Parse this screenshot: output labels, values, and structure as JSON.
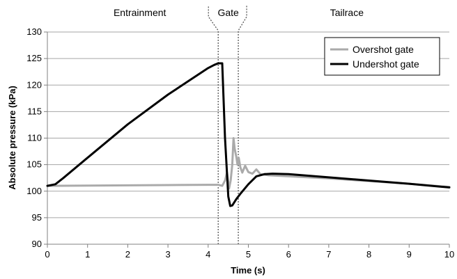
{
  "chart_data": {
    "type": "line",
    "title": "",
    "xlabel": "Time (s)",
    "ylabel": "Absolute pressure (kPa)",
    "xlim": [
      0,
      10
    ],
    "ylim": [
      90,
      130
    ],
    "xticks": [
      0,
      1,
      2,
      3,
      4,
      5,
      6,
      7,
      8,
      9,
      10
    ],
    "yticks": [
      90,
      95,
      100,
      105,
      110,
      115,
      120,
      125,
      130
    ],
    "grid": "horizontal",
    "legend_position": "top-right",
    "regions": [
      {
        "label": "Entrainment",
        "x_center": 2.3
      },
      {
        "label": "Gate",
        "x_center": 4.5
      },
      {
        "label": "Tailrace",
        "x_center": 7.45
      }
    ],
    "boundaries": [
      4.25,
      4.75
    ],
    "series": [
      {
        "name": "Overshot gate",
        "color": "#aaaaaa",
        "points": [
          [
            0,
            101.0
          ],
          [
            1,
            101.05
          ],
          [
            2,
            101.1
          ],
          [
            3,
            101.15
          ],
          [
            4,
            101.2
          ],
          [
            4.25,
            101.2
          ],
          [
            4.35,
            101.0
          ],
          [
            4.42,
            102.0
          ],
          [
            4.47,
            103.5
          ],
          [
            4.52,
            100.5
          ],
          [
            4.56,
            102.0
          ],
          [
            4.6,
            105.0
          ],
          [
            4.63,
            110.0
          ],
          [
            4.66,
            108.0
          ],
          [
            4.7,
            106.5
          ],
          [
            4.73,
            105.0
          ],
          [
            4.76,
            106.3
          ],
          [
            4.8,
            104.5
          ],
          [
            4.85,
            103.5
          ],
          [
            4.92,
            104.8
          ],
          [
            5.0,
            103.6
          ],
          [
            5.1,
            103.3
          ],
          [
            5.2,
            104.1
          ],
          [
            5.3,
            103.2
          ],
          [
            5.5,
            103.0
          ],
          [
            6,
            102.8
          ],
          [
            7,
            102.4
          ],
          [
            8,
            101.9
          ],
          [
            9,
            101.4
          ],
          [
            10,
            100.8
          ]
        ]
      },
      {
        "name": "Undershot gate",
        "color": "#000000",
        "points": [
          [
            0,
            101.0
          ],
          [
            0.2,
            101.3
          ],
          [
            0.4,
            102.5
          ],
          [
            1,
            106.3
          ],
          [
            2,
            112.6
          ],
          [
            3,
            118.2
          ],
          [
            3.5,
            120.7
          ],
          [
            4,
            123.2
          ],
          [
            4.15,
            123.8
          ],
          [
            4.25,
            124.1
          ],
          [
            4.35,
            124.1
          ],
          [
            4.42,
            110.0
          ],
          [
            4.5,
            99.0
          ],
          [
            4.55,
            97.2
          ],
          [
            4.6,
            97.3
          ],
          [
            4.7,
            98.5
          ],
          [
            4.8,
            99.5
          ],
          [
            5.0,
            101.3
          ],
          [
            5.2,
            102.8
          ],
          [
            5.4,
            103.2
          ],
          [
            5.6,
            103.3
          ],
          [
            6,
            103.2
          ],
          [
            7,
            102.6
          ],
          [
            8,
            102.0
          ],
          [
            9,
            101.4
          ],
          [
            10,
            100.7
          ]
        ]
      }
    ]
  }
}
